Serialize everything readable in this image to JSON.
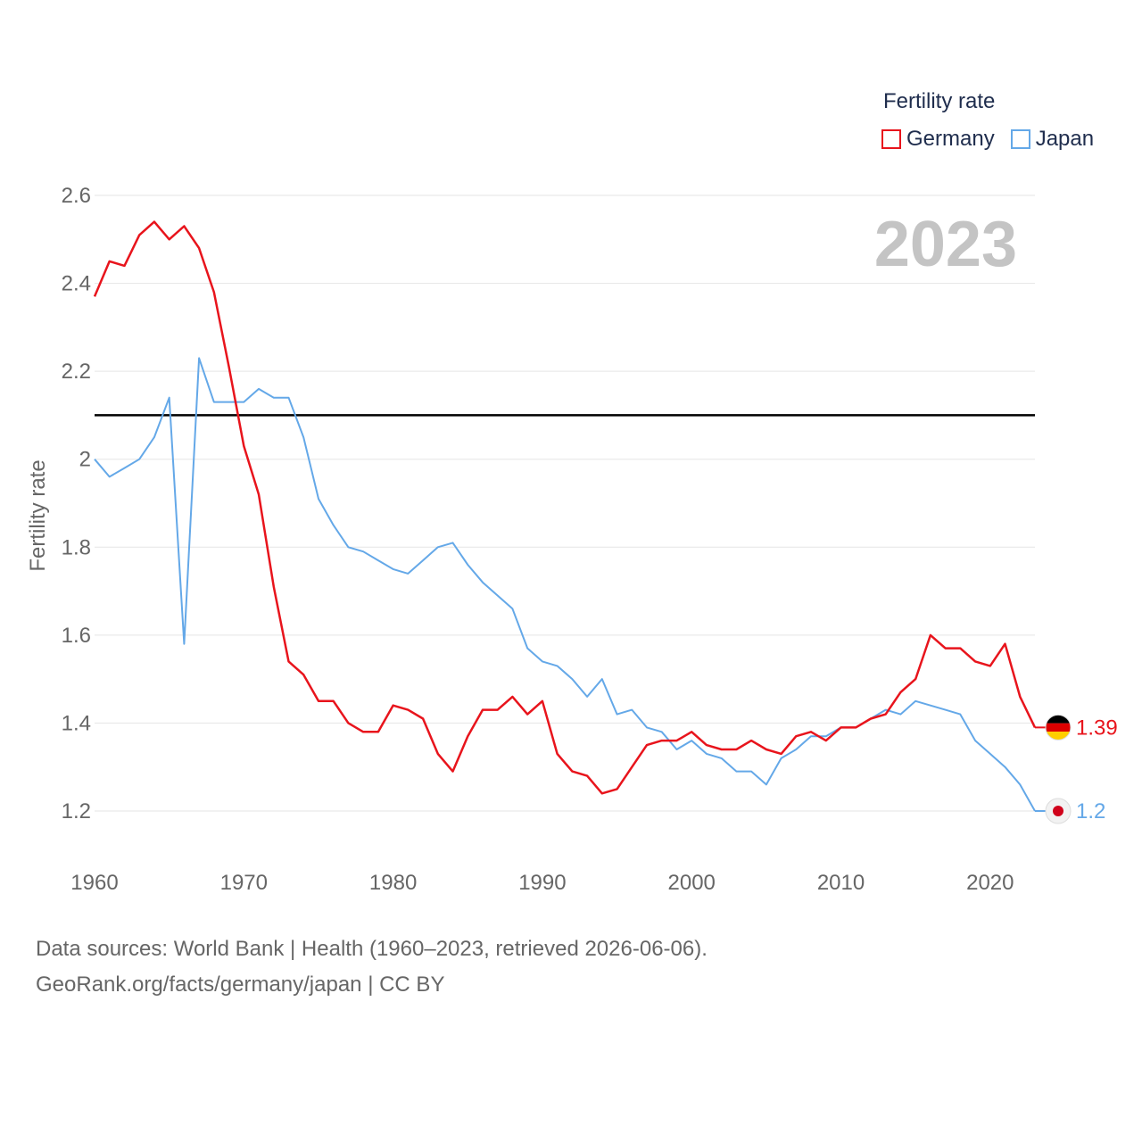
{
  "colors": {
    "germany": "#e8141c",
    "japan": "#64a8e8",
    "grid": "#e5e5e5",
    "tick": "#666666",
    "watermark": "#c4c4c4",
    "reference": "#000000"
  },
  "legend": {
    "title": "Fertility rate",
    "items": [
      {
        "label": "Germany",
        "color": "#e8141c"
      },
      {
        "label": "Japan",
        "color": "#64a8e8"
      }
    ]
  },
  "source": {
    "line1": "Data sources: World Bank | Health (1960–2023, retrieved 2026-06-06).",
    "line2": "GeoRank.org/facts/germany/japan | CC BY"
  },
  "chart_data": {
    "type": "line",
    "title": "Fertility rate",
    "year_label": "2023",
    "ylabel": "Fertility rate",
    "xlabel": "",
    "xlim": [
      1960,
      2023
    ],
    "ylim": [
      1.2,
      2.6
    ],
    "x_ticks": [
      1960,
      1970,
      1980,
      1990,
      2000,
      2010,
      2020
    ],
    "y_ticks": [
      "1.2",
      "1.4",
      "1.6",
      "1.8",
      "2",
      "2.2",
      "2.4",
      "2.6"
    ],
    "reference_line": 2.1,
    "x": [
      1960,
      1961,
      1962,
      1963,
      1964,
      1965,
      1966,
      1967,
      1968,
      1969,
      1970,
      1971,
      1972,
      1973,
      1974,
      1975,
      1976,
      1977,
      1978,
      1979,
      1980,
      1981,
      1982,
      1983,
      1984,
      1985,
      1986,
      1987,
      1988,
      1989,
      1990,
      1991,
      1992,
      1993,
      1994,
      1995,
      1996,
      1997,
      1998,
      1999,
      2000,
      2001,
      2002,
      2003,
      2004,
      2005,
      2006,
      2007,
      2008,
      2009,
      2010,
      2011,
      2012,
      2013,
      2014,
      2015,
      2016,
      2017,
      2018,
      2019,
      2020,
      2021,
      2022,
      2023
    ],
    "series": [
      {
        "name": "Germany",
        "end_label": "1.39",
        "values": [
          2.37,
          2.45,
          2.44,
          2.51,
          2.54,
          2.5,
          2.53,
          2.48,
          2.38,
          2.21,
          2.03,
          1.92,
          1.71,
          1.54,
          1.51,
          1.45,
          1.45,
          1.4,
          1.38,
          1.38,
          1.44,
          1.43,
          1.41,
          1.33,
          1.29,
          1.37,
          1.43,
          1.43,
          1.46,
          1.42,
          1.45,
          1.33,
          1.29,
          1.28,
          1.24,
          1.25,
          1.3,
          1.35,
          1.36,
          1.36,
          1.38,
          1.35,
          1.34,
          1.34,
          1.36,
          1.34,
          1.33,
          1.37,
          1.38,
          1.36,
          1.39,
          1.39,
          1.41,
          1.42,
          1.47,
          1.5,
          1.6,
          1.57,
          1.57,
          1.54,
          1.53,
          1.58,
          1.46,
          1.39
        ]
      },
      {
        "name": "Japan",
        "end_label": "1.2",
        "values": [
          2.0,
          1.96,
          1.98,
          2.0,
          2.05,
          2.14,
          1.58,
          2.23,
          2.13,
          2.13,
          2.13,
          2.16,
          2.14,
          2.14,
          2.05,
          1.91,
          1.85,
          1.8,
          1.79,
          1.77,
          1.75,
          1.74,
          1.77,
          1.8,
          1.81,
          1.76,
          1.72,
          1.69,
          1.66,
          1.57,
          1.54,
          1.53,
          1.5,
          1.46,
          1.5,
          1.42,
          1.43,
          1.39,
          1.38,
          1.34,
          1.36,
          1.33,
          1.32,
          1.29,
          1.29,
          1.26,
          1.32,
          1.34,
          1.37,
          1.37,
          1.39,
          1.39,
          1.41,
          1.43,
          1.42,
          1.45,
          1.44,
          1.43,
          1.42,
          1.36,
          1.33,
          1.3,
          1.26,
          1.2
        ]
      }
    ]
  }
}
